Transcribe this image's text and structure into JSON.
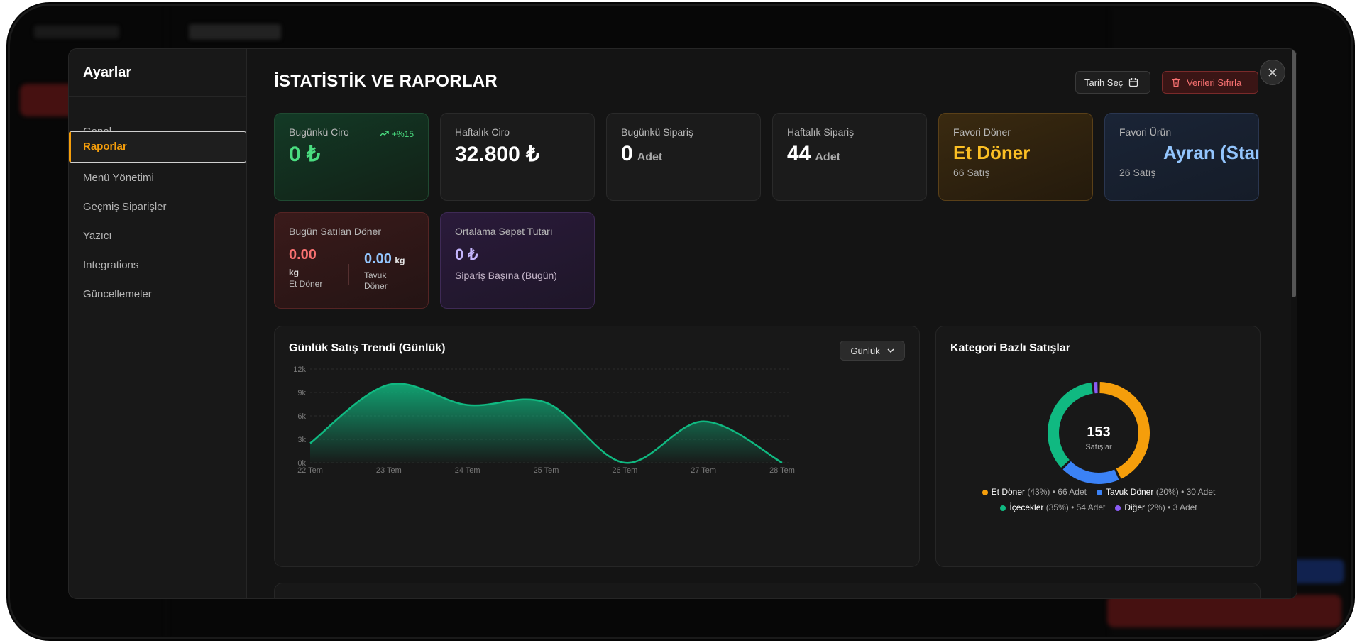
{
  "sidebar": {
    "title": "Ayarlar",
    "items": [
      {
        "label": "Genel",
        "active": false
      },
      {
        "label": "Raporlar",
        "active": true
      },
      {
        "label": "Menü Yönetimi",
        "active": false
      },
      {
        "label": "Geçmiş Siparişler",
        "active": false
      },
      {
        "label": "Yazıcı",
        "active": false
      },
      {
        "label": "Integrations",
        "active": false
      },
      {
        "label": "Güncellemeler",
        "active": false
      }
    ]
  },
  "header": {
    "title": "İSTATİSTİK VE RAPORLAR",
    "date_button": "Tarih Seç",
    "reset_button": "Verileri Sıfırla"
  },
  "cards": {
    "today_revenue": {
      "label": "Bugünkü Ciro",
      "value": "0 ₺",
      "trend": "+%15"
    },
    "weekly_revenue": {
      "label": "Haftalık Ciro",
      "value": "32.800 ₺"
    },
    "today_orders": {
      "label": "Bugünkü Sipariş",
      "value": "0",
      "unit": "Adet"
    },
    "weekly_orders": {
      "label": "Haftalık Sipariş",
      "value": "44",
      "unit": "Adet"
    },
    "favorite_doner": {
      "label": "Favori Döner",
      "value": "Et Döner",
      "sub": "66 Satış"
    },
    "favorite_product": {
      "label": "Favori Ürün",
      "value": "Ayran (Standart)",
      "sub": "26 Satış"
    },
    "doner_sold": {
      "label": "Bugün Satılan Döner",
      "et_value": "0.00",
      "et_unit": "kg",
      "et_label": "Et Döner",
      "tavuk_value": "0.00",
      "tavuk_unit": "kg",
      "tavuk_label": "Tavuk Döner"
    },
    "avg_basket": {
      "label": "Ortalama Sepet Tutarı",
      "value": "0 ₺",
      "sub": "Sipariş Başına (Bugün)"
    }
  },
  "trend_chart": {
    "title": "Günlük Satış Trendi (Günlük)",
    "select_value": "Günlük",
    "chart_data": {
      "type": "area",
      "categories": [
        "22 Tem",
        "23 Tem",
        "24 Tem",
        "25 Tem",
        "26 Tem",
        "27 Tem",
        "28 Tem"
      ],
      "values": [
        2500,
        10000,
        7400,
        7700,
        0,
        5300,
        0
      ],
      "ylim": [
        0,
        12000
      ],
      "yticks": [
        "0k",
        "3k",
        "6k",
        "9k",
        "12k"
      ],
      "color": "#10b981",
      "grid": true
    }
  },
  "category_chart": {
    "title": "Kategori Bazlı Satışlar",
    "total": "153",
    "total_label": "Satışlar",
    "chart_data": {
      "type": "pie",
      "categories": [
        "Et Döner",
        "Tavuk Döner",
        "İçecekler",
        "Diğer"
      ],
      "values": [
        66,
        30,
        54,
        3
      ],
      "percents": [
        "(43%)",
        "(20%)",
        "(35%)",
        "(2%)"
      ],
      "counts": [
        "• 66 Adet",
        "• 30 Adet",
        "• 54 Adet",
        "• 3 Adet"
      ],
      "colors": [
        "#f59e0b",
        "#3b82f6",
        "#10b981",
        "#8b5cf6"
      ]
    }
  }
}
